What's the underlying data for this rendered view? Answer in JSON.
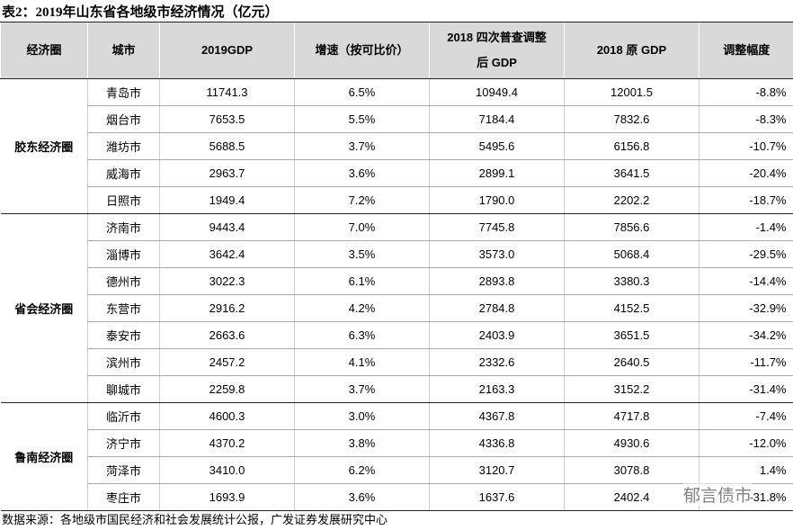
{
  "title": "表2：2019年山东省各地级市经济情况（亿元）",
  "table": {
    "headers": [
      "经济圈",
      "城市",
      "2019GDP",
      "增速（按可比价）",
      "2018 四次普查调整\n后 GDP",
      "2018 原 GDP",
      "调整幅度"
    ],
    "groups": [
      {
        "name": "胶东经济圈",
        "rows": [
          [
            "青岛市",
            "11741.3",
            "6.5%",
            "10949.4",
            "12001.5",
            "-8.8%"
          ],
          [
            "烟台市",
            "7653.5",
            "5.5%",
            "7184.4",
            "7832.6",
            "-8.3%"
          ],
          [
            "潍坊市",
            "5688.5",
            "3.7%",
            "5495.6",
            "6156.8",
            "-10.7%"
          ],
          [
            "威海市",
            "2963.7",
            "3.6%",
            "2899.1",
            "3641.5",
            "-20.4%"
          ],
          [
            "日照市",
            "1949.4",
            "7.2%",
            "1790.0",
            "2202.2",
            "-18.7%"
          ]
        ]
      },
      {
        "name": "省会经济圈",
        "rows": [
          [
            "济南市",
            "9443.4",
            "7.0%",
            "7745.8",
            "7856.6",
            "-1.4%"
          ],
          [
            "淄博市",
            "3642.4",
            "3.5%",
            "3573.0",
            "5068.4",
            "-29.5%"
          ],
          [
            "德州市",
            "3022.3",
            "6.1%",
            "2893.8",
            "3380.3",
            "-14.4%"
          ],
          [
            "东营市",
            "2916.2",
            "4.2%",
            "2784.8",
            "4152.5",
            "-32.9%"
          ],
          [
            "泰安市",
            "2663.6",
            "6.3%",
            "2403.9",
            "3651.5",
            "-34.2%"
          ],
          [
            "滨州市",
            "2457.2",
            "4.1%",
            "2332.6",
            "2640.5",
            "-11.7%"
          ],
          [
            "聊城市",
            "2259.8",
            "3.7%",
            "2163.3",
            "3152.2",
            "-31.4%"
          ]
        ]
      },
      {
        "name": "鲁南经济圈",
        "rows": [
          [
            "临沂市",
            "4600.3",
            "3.0%",
            "4367.8",
            "4717.8",
            "-7.4%"
          ],
          [
            "济宁市",
            "4370.2",
            "3.8%",
            "4336.8",
            "4930.6",
            "-12.0%"
          ],
          [
            "菏泽市",
            "3410.0",
            "6.2%",
            "3120.7",
            "3078.8",
            "1.4%"
          ],
          [
            "枣庄市",
            "1693.9",
            "3.6%",
            "1637.6",
            "2402.4",
            "-31.8%"
          ]
        ]
      }
    ]
  },
  "source": "数据来源：各地级市国民经济和社会发展统计公报，广发证券发展研究中心",
  "watermark": "郁言债市"
}
